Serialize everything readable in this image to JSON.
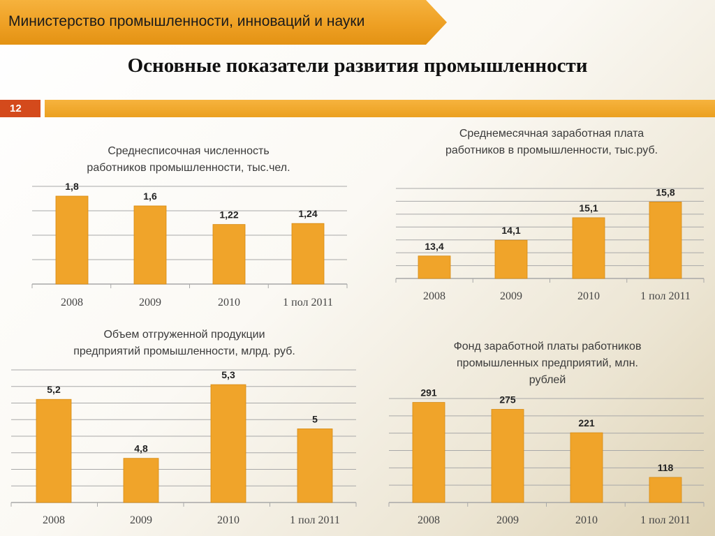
{
  "header": {
    "ministry": "Министерство промышленности, инноваций и науки",
    "title": "Основные показатели развития промышленности",
    "slide_number": "12"
  },
  "colors": {
    "bar": "#f0a42a",
    "bar_edge": "#d68a12",
    "grid": "#a8a8a8",
    "banner": "#eea024",
    "number_box": "#d44a1c"
  },
  "chart_data": [
    {
      "type": "bar",
      "title": [
        "Среднесписочная численность",
        "работников промышленности,  тыс.чел."
      ],
      "categories": [
        "2008",
        "2009",
        "2010",
        "1 пол 2011"
      ],
      "values": [
        1.8,
        1.6,
        1.22,
        1.24
      ],
      "labels": [
        "1,8",
        "1,6",
        "1,22",
        "1,24"
      ],
      "ylim": [
        0,
        2
      ],
      "grid": true
    },
    {
      "type": "bar",
      "title": [
        "Среднемесячная заработная плата",
        "работников в промышленности,  тыс.руб."
      ],
      "categories": [
        "2008",
        "2009",
        "2010",
        "1 пол 2011"
      ],
      "values": [
        13.4,
        14.1,
        15.1,
        15.8
      ],
      "labels": [
        "13,4",
        "14,1",
        "15,1",
        "15,8"
      ],
      "ylim": [
        12.4,
        16.4
      ],
      "grid": true
    },
    {
      "type": "bar",
      "title": [
        "Объем отгруженной продукции",
        "предприятий  промышленности, млрд. руб."
      ],
      "categories": [
        "2008",
        "2009",
        "2010",
        "1 пол 2011"
      ],
      "values": [
        5.2,
        4.8,
        5.3,
        5
      ],
      "labels": [
        "5,2",
        "4,8",
        "5,3",
        "5"
      ],
      "ylim": [
        4.5,
        5.4
      ],
      "grid": true
    },
    {
      "type": "bar",
      "title": [
        "Фонд заработной платы работников",
        "промышленных предприятий, млн.",
        "рублей"
      ],
      "categories": [
        "2008",
        "2009",
        "2010",
        "1 пол 2011"
      ],
      "values": [
        291,
        275,
        221,
        118
      ],
      "labels": [
        "291",
        "275",
        "221",
        "118"
      ],
      "ylim": [
        60,
        300
      ],
      "grid": true
    }
  ]
}
